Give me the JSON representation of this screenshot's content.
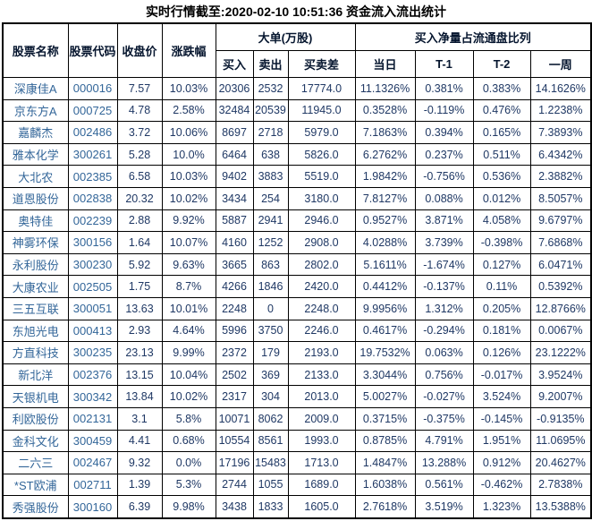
{
  "title": "实时行情截至:2020-02-10 10:51:36 资金流入流出统计",
  "colors": {
    "border": "#000000",
    "header_text": "#05152e",
    "stock_link_blue": "#336699",
    "number_text": "#1f3864",
    "background": "#ffffff"
  },
  "table": {
    "header": {
      "col_name": "股票名称",
      "col_code": "股票代码",
      "col_close": "收盘价",
      "col_change": "涨跌幅",
      "group_large_orders": "大单(万股)",
      "col_buy": "买入",
      "col_sell": "卖出",
      "col_diff": "买卖差",
      "group_net_buy_ratio": "买入净量占流通盘比列",
      "col_today": "当日",
      "col_t1": "T-1",
      "col_t2": "T-2",
      "col_week": "一周"
    },
    "column_semantics": [
      "stock-name-cell",
      "stock-code-cell",
      "close-price-cell",
      "change-percent-cell",
      "buy-volume-cell",
      "sell-volume-cell",
      "buy-sell-diff-cell",
      "today-ratio-cell",
      "t1-ratio-cell",
      "t2-ratio-cell",
      "week-ratio-cell"
    ],
    "rows": [
      [
        "深康佳A",
        "000016",
        "7.57",
        "10.03%",
        "20306",
        "2532",
        "17774.0",
        "11.1326%",
        "0.381%",
        "0.383%",
        "14.1626%"
      ],
      [
        "京东方A",
        "000725",
        "4.78",
        "2.58%",
        "32484",
        "20539",
        "11945.0",
        "0.3528%",
        "-0.119%",
        "0.476%",
        "1.2238%"
      ],
      [
        "嘉麟杰",
        "002486",
        "3.72",
        "10.06%",
        "8697",
        "2718",
        "5979.0",
        "7.1863%",
        "0.394%",
        "0.165%",
        "7.3893%"
      ],
      [
        "雅本化学",
        "300261",
        "5.28",
        "10.0%",
        "6464",
        "638",
        "5826.0",
        "6.2762%",
        "0.237%",
        "0.511%",
        "6.4342%"
      ],
      [
        "大北农",
        "002385",
        "6.58",
        "10.03%",
        "9402",
        "3883",
        "5519.0",
        "1.9842%",
        "-0.756%",
        "0.536%",
        "2.3882%"
      ],
      [
        "道恩股份",
        "002838",
        "20.32",
        "10.02%",
        "3434",
        "254",
        "3180.0",
        "7.8127%",
        "0.088%",
        "0.012%",
        "8.5057%"
      ],
      [
        "奥特佳",
        "002239",
        "2.88",
        "9.92%",
        "5887",
        "2941",
        "2946.0",
        "0.9527%",
        "3.871%",
        "4.058%",
        "9.6797%"
      ],
      [
        "神雾环保",
        "300156",
        "1.64",
        "10.07%",
        "4160",
        "1252",
        "2908.0",
        "4.0288%",
        "3.739%",
        "-0.398%",
        "7.6868%"
      ],
      [
        "永利股份",
        "300230",
        "5.92",
        "9.63%",
        "3665",
        "863",
        "2802.0",
        "5.1611%",
        "-1.674%",
        "0.127%",
        "6.0471%"
      ],
      [
        "大康农业",
        "002505",
        "1.75",
        "8.7%",
        "4266",
        "1846",
        "2420.0",
        "0.4412%",
        "-0.137%",
        "0.11%",
        "0.5392%"
      ],
      [
        "三五互联",
        "300051",
        "13.63",
        "10.01%",
        "2248",
        "0",
        "2248.0",
        "9.9956%",
        "1.312%",
        "0.205%",
        "12.8766%"
      ],
      [
        "东旭光电",
        "000413",
        "2.93",
        "4.64%",
        "5996",
        "3750",
        "2246.0",
        "0.4617%",
        "-0.294%",
        "0.181%",
        "0.0067%"
      ],
      [
        "方直科技",
        "300235",
        "23.13",
        "9.99%",
        "2372",
        "179",
        "2193.0",
        "19.7532%",
        "0.063%",
        "0.126%",
        "23.1222%"
      ],
      [
        "新北洋",
        "002376",
        "13.15",
        "10.04%",
        "2502",
        "369",
        "2133.0",
        "3.3044%",
        "0.756%",
        "-0.017%",
        "3.9524%"
      ],
      [
        "天银机电",
        "300342",
        "13.84",
        "10.02%",
        "2317",
        "304",
        "2013.0",
        "5.0027%",
        "-0.027%",
        "3.524%",
        "9.2007%"
      ],
      [
        "利欧股份",
        "002131",
        "3.1",
        "5.8%",
        "10071",
        "8062",
        "2009.0",
        "0.3715%",
        "-0.375%",
        "-0.145%",
        "-0.9135%"
      ],
      [
        "金科文化",
        "300459",
        "4.41",
        "0.68%",
        "10554",
        "8561",
        "1993.0",
        "0.8785%",
        "4.791%",
        "1.951%",
        "11.0695%"
      ],
      [
        "二六三",
        "002467",
        "9.32",
        "0.0%",
        "17196",
        "15483",
        "1713.0",
        "1.4847%",
        "13.288%",
        "0.912%",
        "20.4627%"
      ],
      [
        "*ST欧浦",
        "002711",
        "1.39",
        "5.3%",
        "2744",
        "1055",
        "1689.0",
        "1.6038%",
        "0.561%",
        "-0.462%",
        "2.7838%"
      ],
      [
        "秀强股份",
        "300160",
        "6.39",
        "9.98%",
        "3438",
        "1833",
        "1605.0",
        "2.7618%",
        "3.519%",
        "1.323%",
        "13.5388%"
      ]
    ]
  }
}
